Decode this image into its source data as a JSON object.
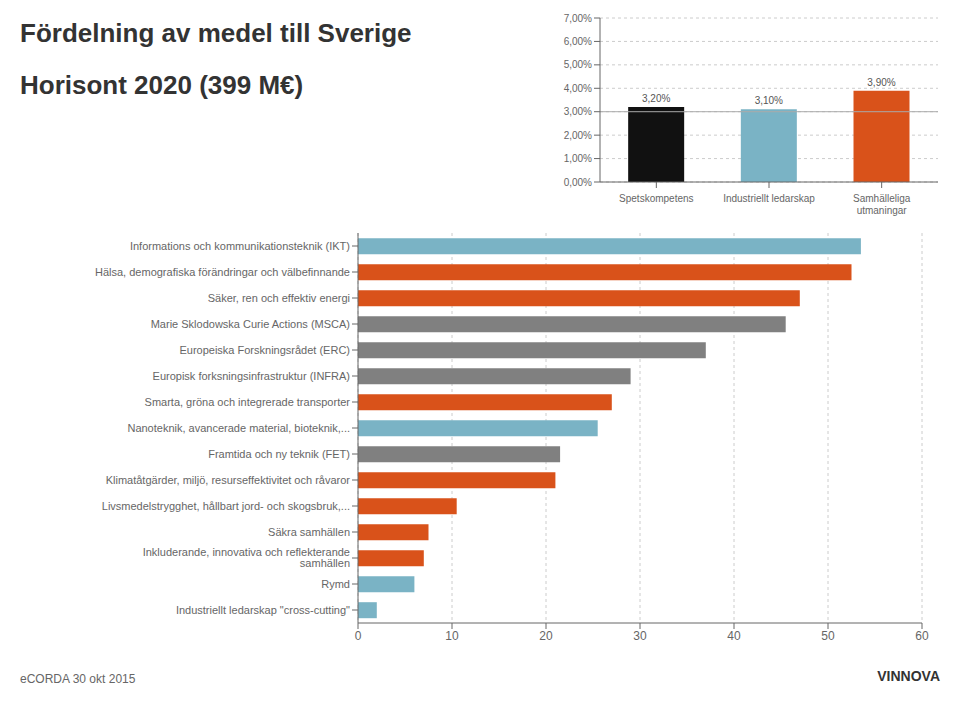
{
  "chart_data": [
    {
      "type": "bar",
      "title": "Fördelning av medel till Sverige",
      "subtitle": "Horisont 2020 (399 M€)",
      "annotations": [
        "eCORDA 30 okt 2015",
        "VINNOVA"
      ],
      "orientation": "horizontal",
      "categories": [
        "Informations och kommunikationsteknik (IKT)",
        "Hälsa, demografiska förändringar och välbefinnande",
        "Säker, ren och effektiv energi",
        "Marie Sklodowska Curie Actions (MSCA)",
        "Europeiska Forskningsrådet (ERC)",
        "Europisk forksningsinfrastruktur (INFRA)",
        "Smarta, gröna och integrerade transporter",
        "Nanoteknik, avancerade material, bioteknik,...",
        "Framtida och ny teknik (FET)",
        "Klimatåtgärder, miljö, resurseffektivitet och råvaror",
        "Livsmedelstrygghet, hållbart jord- och skogsbruk,...",
        "Säkra samhällen",
        "Inkluderande, innovativa och reflekterande samhällen",
        "Rymd",
        "Industriellt ledarskap \"cross-cutting\""
      ],
      "values": [
        53.5,
        52.5,
        47.0,
        45.5,
        37.0,
        29.0,
        27.0,
        25.5,
        21.5,
        21.0,
        10.5,
        7.5,
        7.0,
        6.0,
        2.0
      ],
      "colors": [
        "#7ab3c5",
        "#d9521a",
        "#d9521a",
        "#808080",
        "#808080",
        "#808080",
        "#d9521a",
        "#7ab3c5",
        "#808080",
        "#d9521a",
        "#d9521a",
        "#d9521a",
        "#d9521a",
        "#7ab3c5",
        "#7ab3c5"
      ],
      "xlim": [
        0,
        60
      ],
      "xticks": [
        0,
        10,
        20,
        30,
        40,
        50,
        60
      ],
      "grid": true
    },
    {
      "type": "bar",
      "categories": [
        "Spetskompetens",
        "Industriellt ledarskap",
        "Samhälleliga\nutmaningar"
      ],
      "values": [
        3.2,
        3.1,
        3.9
      ],
      "value_labels": [
        "3,20%",
        "3,10%",
        "3,90%"
      ],
      "colors": [
        "#111111",
        "#7ab3c5",
        "#d9521a"
      ],
      "ylim": [
        0,
        7
      ],
      "yticks": [
        {
          "value": 0,
          "label": "0,00%"
        },
        {
          "value": 1,
          "label": "1,00%"
        },
        {
          "value": 2,
          "label": "2,00%"
        },
        {
          "value": 3,
          "label": "3,00%"
        },
        {
          "value": 4,
          "label": "4,00%"
        },
        {
          "value": 5,
          "label": "5,00%"
        },
        {
          "value": 6,
          "label": "6,00%"
        },
        {
          "value": 7,
          "label": "7,00%"
        }
      ],
      "reference_line": 3.0,
      "data_labels": true,
      "grid": true
    }
  ]
}
